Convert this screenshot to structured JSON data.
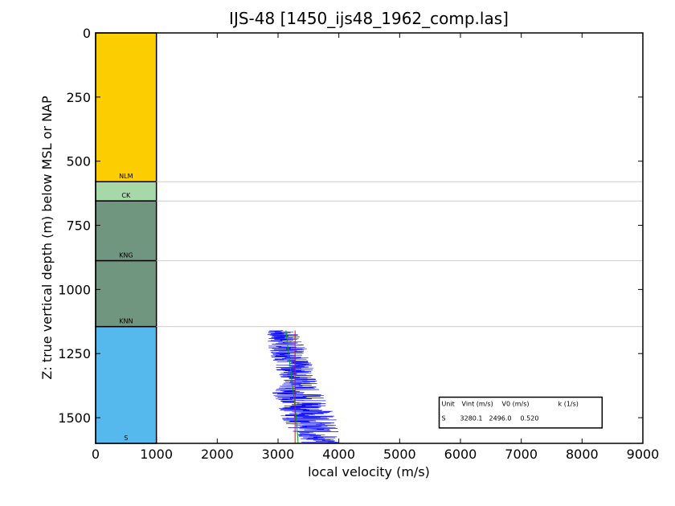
{
  "chart_data": {
    "type": "line",
    "title": "IJS-48 [1450_ijs48_1962_comp.las]",
    "xlabel": "local velocity (m/s)",
    "ylabel": "Z: true vertical depth (m) below MSL or NAP",
    "xlim": [
      0,
      9000
    ],
    "ylim": [
      1600,
      0
    ],
    "x_ticks": [
      "0",
      "1000",
      "2000",
      "3000",
      "4000",
      "5000",
      "6000",
      "7000",
      "8000",
      "9000"
    ],
    "y_ticks": [
      "0",
      "250",
      "500",
      "750",
      "1000",
      "1250",
      "1500"
    ],
    "units": [
      {
        "name": "NLM",
        "top": 0,
        "base": 580,
        "color": "#fccd00"
      },
      {
        "name": "CK",
        "top": 580,
        "base": 655,
        "color": "#a7d8a7"
      },
      {
        "name": "KNG",
        "top": 655,
        "base": 888,
        "color": "#70967f"
      },
      {
        "name": "KNN",
        "top": 888,
        "base": 1145,
        "color": "#70967f"
      },
      {
        "name": "S",
        "top": 1145,
        "base": 1600,
        "color": "#55b9ee"
      }
    ],
    "unit_column_xlim": [
      0,
      1000
    ],
    "series": [
      {
        "type": "noisy-log",
        "color": "#0000ff",
        "depth": [
          1160,
          1200,
          1250,
          1300,
          1350,
          1400,
          1450,
          1500,
          1550,
          1600
        ],
        "velocity": [
          3050,
          3100,
          3200,
          3250,
          3350,
          3300,
          3450,
          3500,
          3600,
          3700
        ],
        "spread": [
          500,
          600,
          650,
          650,
          600,
          800,
          900,
          900,
          800,
          600
        ]
      },
      {
        "type": "line",
        "color": "#00a000",
        "x": [
          3130,
          3300,
          3330
        ],
        "y": [
          1160,
          1500,
          1600
        ]
      },
      {
        "type": "line",
        "color": "#ff0000",
        "x": [
          3280.1,
          3280.1
        ],
        "y": [
          1160,
          1600
        ]
      }
    ],
    "table": {
      "headers": [
        "Unit",
        "Vint (m/s)",
        "V0 (m/s)",
        "k (1/s)"
      ],
      "rows": [
        [
          "S",
          "3280.1",
          "2496.0",
          "0.520"
        ]
      ]
    },
    "grid": "horizontal lines at unit boundaries"
  }
}
